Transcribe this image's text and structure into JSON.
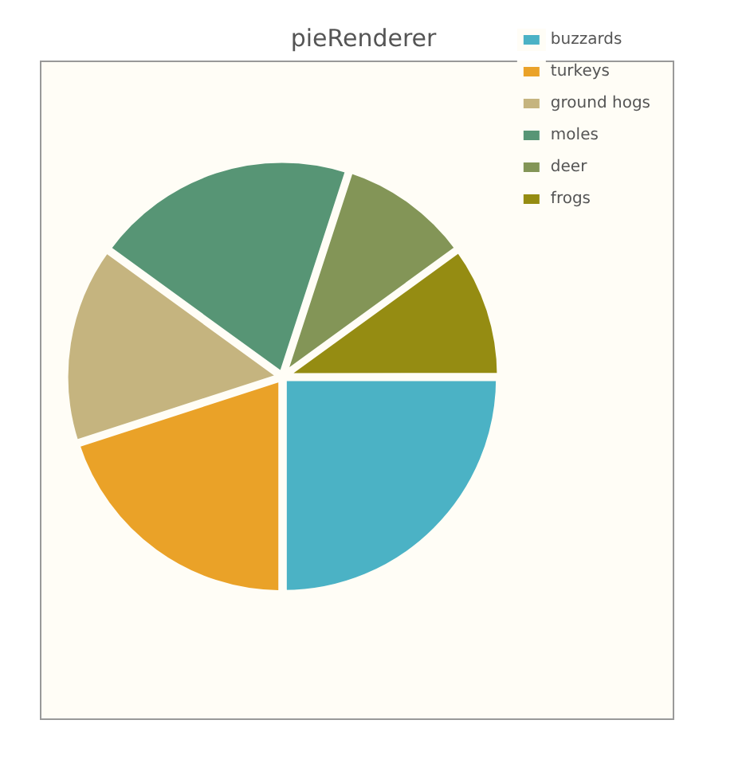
{
  "chart_data": {
    "type": "pie",
    "title": "pieRenderer",
    "categories": [
      "buzzards",
      "turkeys",
      "ground hogs",
      "moles",
      "deer",
      "frogs"
    ],
    "values": [
      25,
      20,
      15,
      20,
      10,
      10
    ],
    "colors": [
      "#4bb2c5",
      "#eaa228",
      "#c5b47f",
      "#579575",
      "#839557",
      "#958c12"
    ],
    "legend": "top right"
  }
}
